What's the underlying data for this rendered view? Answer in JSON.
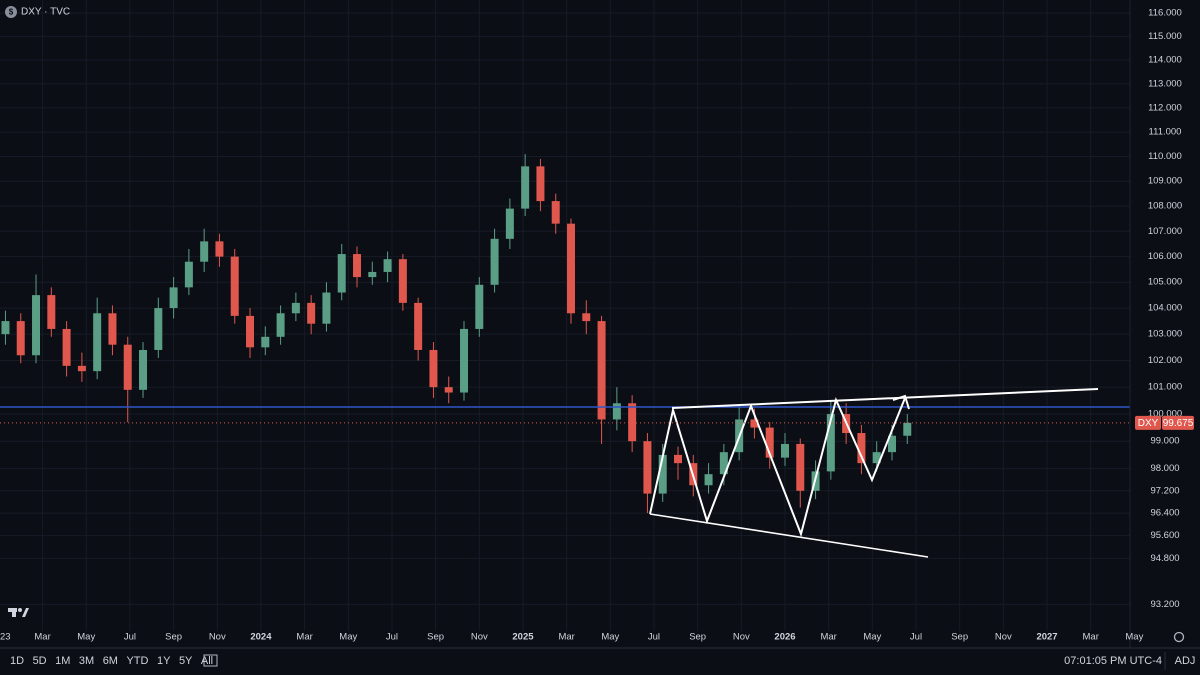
{
  "ui": {
    "header": "DXY · TVC",
    "symbol": "DXY",
    "ranges": [
      "1D",
      "5D",
      "1M",
      "3M",
      "6M",
      "YTD",
      "1Y",
      "5Y",
      "All"
    ],
    "clock": "07:01:05 PM UTC-4",
    "adj": "ADJ"
  },
  "chart_data": {
    "type": "candlestick",
    "log_scale": true,
    "grid": true,
    "up_color": "#5a9e86",
    "down_color": "#e0574d",
    "last_price": 99.675,
    "xlim": [
      0.05,
      51.8
    ],
    "ylim": [
      92.49,
      116.56
    ],
    "xticks": [
      {
        "value": 0,
        "label": "23"
      },
      {
        "value": 2,
        "label": "Mar"
      },
      {
        "value": 4,
        "label": "May"
      },
      {
        "value": 6,
        "label": "Jul"
      },
      {
        "value": 8,
        "label": "Sep"
      },
      {
        "value": 10,
        "label": "Nov"
      },
      {
        "value": 12,
        "label": "2024"
      },
      {
        "value": 14,
        "label": "Mar"
      },
      {
        "value": 16,
        "label": "May"
      },
      {
        "value": 18,
        "label": "Jul"
      },
      {
        "value": 20,
        "label": "Sep"
      },
      {
        "value": 22,
        "label": "Nov"
      },
      {
        "value": 24,
        "label": "2025"
      },
      {
        "value": 26,
        "label": "Mar"
      },
      {
        "value": 28,
        "label": "May"
      },
      {
        "value": 30,
        "label": "Jul"
      },
      {
        "value": 32,
        "label": "Sep"
      },
      {
        "value": 34,
        "label": "Nov"
      },
      {
        "value": 36,
        "label": "2026"
      },
      {
        "value": 38,
        "label": "Mar"
      },
      {
        "value": 40,
        "label": "May"
      },
      {
        "value": 42,
        "label": "Jul"
      },
      {
        "value": 44,
        "label": "Sep"
      },
      {
        "value": 46,
        "label": "Nov"
      },
      {
        "value": 48,
        "label": "2027"
      },
      {
        "value": 50,
        "label": "Mar"
      },
      {
        "value": 52,
        "label": "May"
      }
    ],
    "yticks": [
      {
        "value": 116,
        "label": "116.000"
      },
      {
        "value": 115,
        "label": "115.000"
      },
      {
        "value": 114,
        "label": "114.000"
      },
      {
        "value": 113,
        "label": "113.000"
      },
      {
        "value": 112,
        "label": "112.000"
      },
      {
        "value": 111,
        "label": "111.000"
      },
      {
        "value": 110,
        "label": "110.000"
      },
      {
        "value": 109,
        "label": "109.000"
      },
      {
        "value": 108,
        "label": "108.000"
      },
      {
        "value": 107,
        "label": "107.000"
      },
      {
        "value": 106,
        "label": "106.000"
      },
      {
        "value": 105,
        "label": "105.000"
      },
      {
        "value": 104,
        "label": "104.000"
      },
      {
        "value": 103,
        "label": "103.000"
      },
      {
        "value": 102,
        "label": "102.000"
      },
      {
        "value": 101,
        "label": "101.000"
      },
      {
        "value": 100,
        "label": "100.000"
      },
      {
        "value": 99,
        "label": "99.000"
      },
      {
        "value": 98,
        "label": "98.000"
      },
      {
        "value": 97.2,
        "label": "97.200"
      },
      {
        "value": 96.4,
        "label": "96.400"
      },
      {
        "value": 95.6,
        "label": "95.600"
      },
      {
        "value": 94.8,
        "label": "94.800"
      },
      {
        "value": 93.2,
        "label": "93.200"
      }
    ],
    "x": [
      0.3,
      1.0,
      1.7,
      2.4,
      3.1,
      3.8,
      4.5,
      5.2,
      5.9,
      6.6,
      7.3,
      8.0,
      8.7,
      9.4,
      10.1,
      10.8,
      11.5,
      12.2,
      12.9,
      13.6,
      14.3,
      15.0,
      15.7,
      16.4,
      17.1,
      17.8,
      18.5,
      19.2,
      19.9,
      20.6,
      21.3,
      22.0,
      22.7,
      23.4,
      24.1,
      24.8,
      25.5,
      26.2,
      26.9,
      27.6,
      28.3,
      29.0,
      29.7,
      30.4,
      31.1,
      31.8,
      32.5,
      33.2,
      33.9,
      34.6,
      35.3,
      36.0,
      36.7,
      37.4,
      38.1,
      38.8,
      39.5,
      40.2,
      40.9,
      41.6
    ],
    "open": [
      103.0,
      103.5,
      102.2,
      104.5,
      103.2,
      101.8,
      101.6,
      103.8,
      102.6,
      100.9,
      102.4,
      104.0,
      104.8,
      105.8,
      106.6,
      106.0,
      103.7,
      102.5,
      102.9,
      103.8,
      104.2,
      103.4,
      104.6,
      106.1,
      105.2,
      105.4,
      105.9,
      104.2,
      102.4,
      101.0,
      100.8,
      103.2,
      104.9,
      106.7,
      107.9,
      109.6,
      108.2,
      107.3,
      103.8,
      103.5,
      99.8,
      100.4,
      99.0,
      97.1,
      98.5,
      98.2,
      97.4,
      97.8,
      98.6,
      99.8,
      99.5,
      98.4,
      98.9,
      97.2,
      97.9,
      100.0,
      99.3,
      98.2,
      98.6,
      99.2
    ],
    "high": [
      103.9,
      103.8,
      105.3,
      104.8,
      103.5,
      102.3,
      104.4,
      104.1,
      102.9,
      102.7,
      104.4,
      105.2,
      106.3,
      107.1,
      106.9,
      106.3,
      104.0,
      103.3,
      104.1,
      104.6,
      104.5,
      105.0,
      106.5,
      106.4,
      105.8,
      106.2,
      106.1,
      104.4,
      102.7,
      101.4,
      103.5,
      105.2,
      107.1,
      108.3,
      110.1,
      109.9,
      108.5,
      107.5,
      104.3,
      103.7,
      101.0,
      100.7,
      99.3,
      98.9,
      98.8,
      98.5,
      98.2,
      98.9,
      100.3,
      100.2,
      99.7,
      99.3,
      99.1,
      98.3,
      100.5,
      100.4,
      99.6,
      99.0,
      99.6,
      100.0
    ],
    "low": [
      102.6,
      101.9,
      101.9,
      102.9,
      101.4,
      101.2,
      101.3,
      102.2,
      99.7,
      100.6,
      102.1,
      103.6,
      104.5,
      105.4,
      105.6,
      103.4,
      102.1,
      102.2,
      102.6,
      103.5,
      103.0,
      103.1,
      104.3,
      104.8,
      104.9,
      105.0,
      103.9,
      102.0,
      100.6,
      100.4,
      100.5,
      102.9,
      104.6,
      106.3,
      107.6,
      107.8,
      106.9,
      103.4,
      103.0,
      98.9,
      99.4,
      98.6,
      96.4,
      96.8,
      97.6,
      97.0,
      97.1,
      97.4,
      98.3,
      99.1,
      98.0,
      98.1,
      96.6,
      96.9,
      97.6,
      98.9,
      97.8,
      97.9,
      98.3,
      98.9
    ],
    "close": [
      103.5,
      102.2,
      104.5,
      103.2,
      101.8,
      101.6,
      103.8,
      102.6,
      100.9,
      102.4,
      104.0,
      104.8,
      105.8,
      106.6,
      106.0,
      103.7,
      102.5,
      102.9,
      103.8,
      104.2,
      103.4,
      104.6,
      106.1,
      105.2,
      105.4,
      105.9,
      104.2,
      102.4,
      101.0,
      100.8,
      103.2,
      104.9,
      106.7,
      107.9,
      109.6,
      108.2,
      107.3,
      103.8,
      103.5,
      99.8,
      100.4,
      99.0,
      97.1,
      98.5,
      98.2,
      97.4,
      97.8,
      98.6,
      99.8,
      99.5,
      98.4,
      98.9,
      97.2,
      97.9,
      100.0,
      99.3,
      98.2,
      98.6,
      99.2,
      99.675
    ]
  }
}
